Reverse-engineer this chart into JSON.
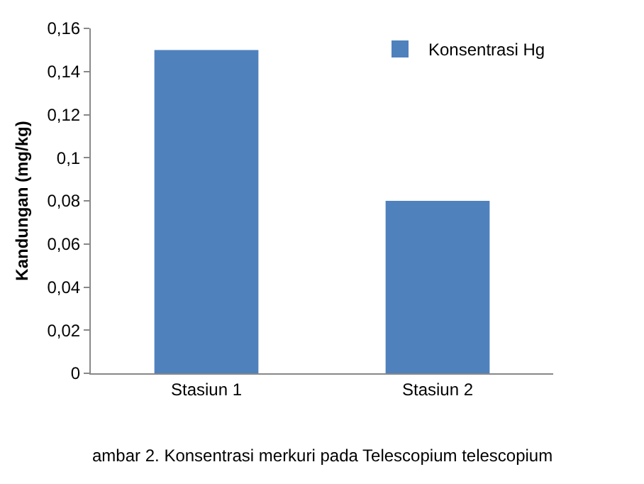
{
  "chart_data": {
    "type": "bar",
    "ylabel": "Kandungan (mg/kg)",
    "categories": [
      "Stasiun 1",
      "Stasiun 2"
    ],
    "series": [
      {
        "name": "Konsentrasi Hg",
        "color": "#4f81bd",
        "values": [
          0.15,
          0.08
        ]
      }
    ],
    "ylim": [
      0,
      0.16
    ],
    "yticks": [
      0,
      {
        "value": 0.02,
        "label": "0,02"
      },
      {
        "value": 0.04,
        "label": "0,04"
      },
      {
        "value": 0.06,
        "label": "0,06"
      },
      {
        "value": 0.08,
        "label": "0,08"
      },
      {
        "value": 0.1,
        "label": "0,1"
      },
      {
        "value": 0.12,
        "label": "0,12"
      },
      {
        "value": 0.14,
        "label": "0,14"
      },
      {
        "value": 0.16,
        "label": "0,16"
      }
    ],
    "grid": false,
    "legend": "top right",
    "annotations": [
      "ambar 2. Konsentrasi merkuri pada Telescopium telescopium"
    ]
  }
}
